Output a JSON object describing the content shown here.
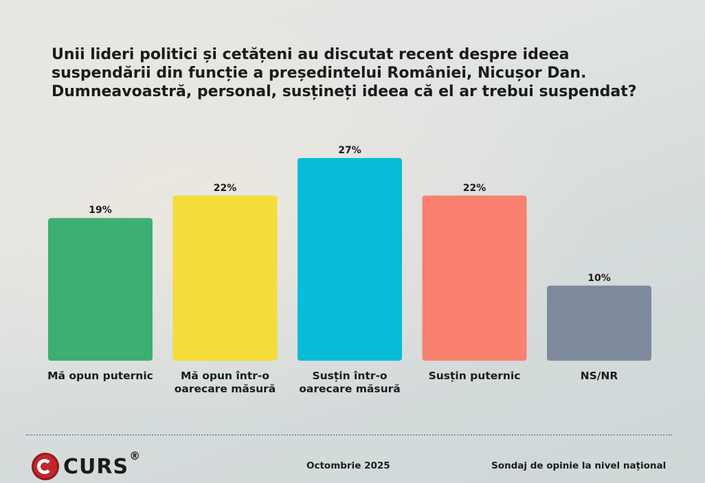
{
  "chart_data": {
    "type": "bar",
    "title": "Unii lideri politici și cetățeni au discutat recent despre ideea suspendării din funcție a președintelui României, Nicușor Dan. Dumneavoastră, personal, susțineți ideea că el ar trebui suspendat?",
    "categories": [
      "Mă opun puternic",
      "Mă opun într-o\noarecare măsură",
      "Susțin într-o\noarecare măsură",
      "Susțin puternic",
      "NS/NR"
    ],
    "values": [
      19,
      22,
      27,
      22,
      10
    ],
    "value_labels": [
      "19%",
      "22%",
      "27%",
      "22%",
      "10%"
    ],
    "unit": "%",
    "colors": [
      "#3daf72",
      "#f4dd3a",
      "#07bcd9",
      "#fa8070",
      "#7e8a9c"
    ],
    "ylim": [
      0,
      27
    ],
    "grid": false,
    "legend": "none"
  },
  "footer": {
    "logo_text": "CURS",
    "logo_mark": "®",
    "date": "Octombrie 2025",
    "note": "Sondaj de opinie la nivel național"
  }
}
